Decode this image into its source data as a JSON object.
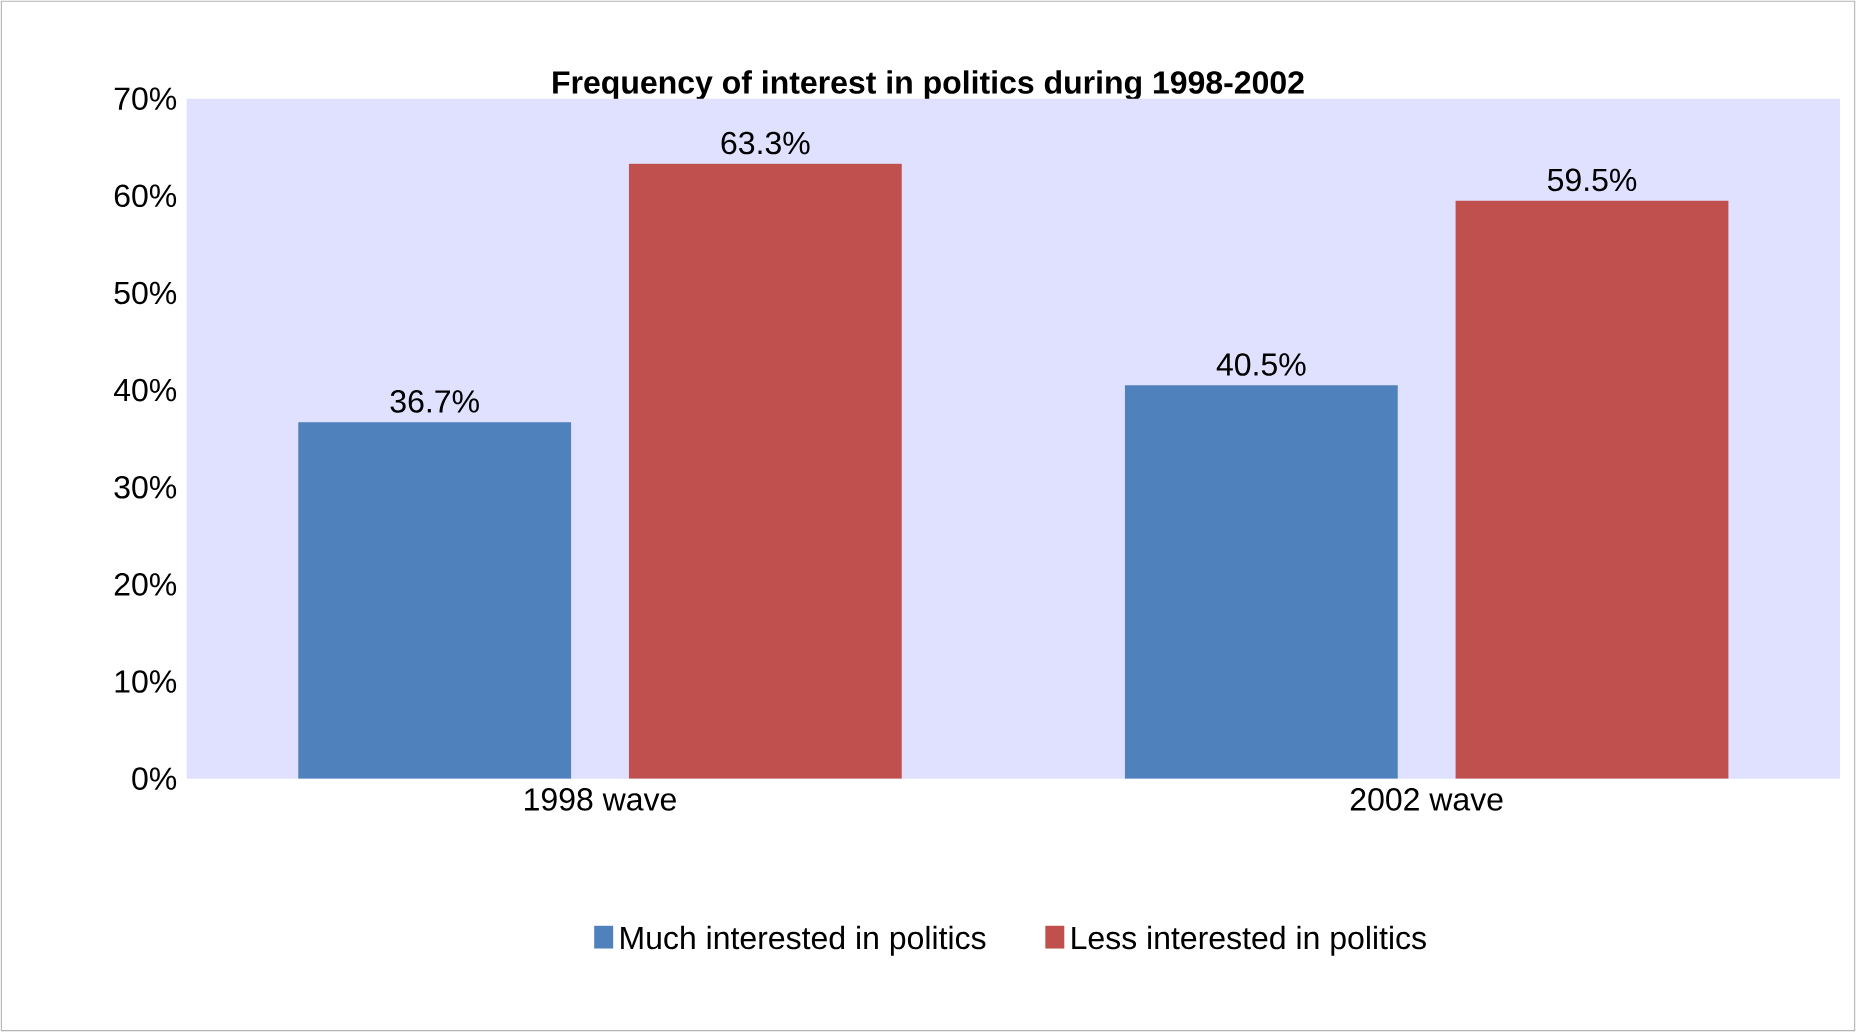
{
  "chart_data": {
    "type": "bar",
    "title": "Frequency of interest in politics during 1998-2002",
    "categories": [
      "1998 wave",
      "2002 wave"
    ],
    "series": [
      {
        "name": "Much interested in politics",
        "color": "#4f81bd",
        "values": [
          36.7,
          40.5
        ],
        "value_labels": [
          "36.7%",
          "40.5%"
        ]
      },
      {
        "name": "Less interested in politics",
        "color": "#c0504d",
        "values": [
          63.3,
          59.5
        ],
        "value_labels": [
          "63.3%",
          "59.5%"
        ]
      }
    ],
    "ylim": [
      0,
      70
    ],
    "yticks": [
      {
        "value": 0,
        "label": "0%"
      },
      {
        "value": 10,
        "label": "10%"
      },
      {
        "value": 20,
        "label": "20%"
      },
      {
        "value": 30,
        "label": "30%"
      },
      {
        "value": 40,
        "label": "40%"
      },
      {
        "value": 50,
        "label": "50%"
      },
      {
        "value": 60,
        "label": "60%"
      },
      {
        "value": 70,
        "label": "70%"
      }
    ],
    "legend": "bottom"
  }
}
